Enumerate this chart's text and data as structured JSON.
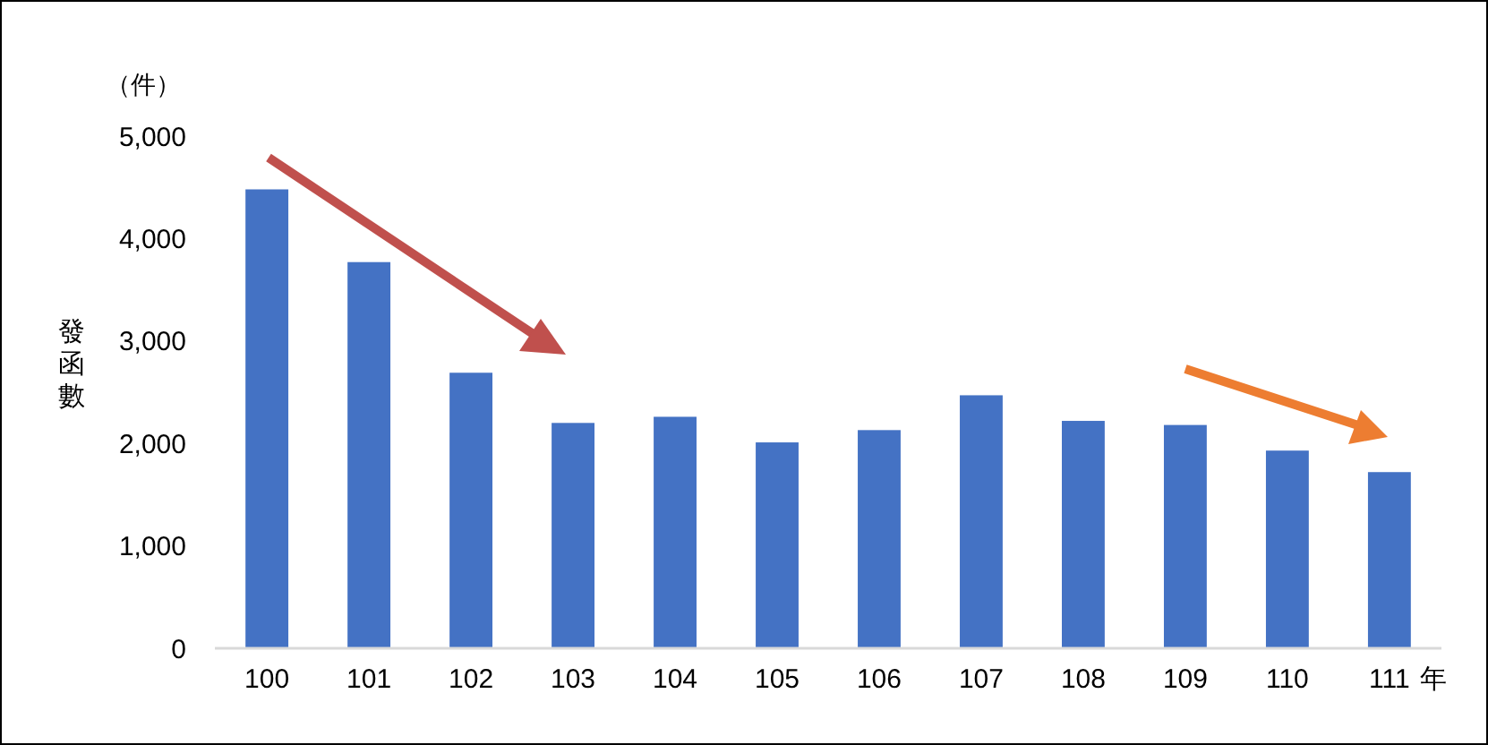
{
  "chart_data": {
    "type": "bar",
    "ylabel": "發函數",
    "xlabel": "年",
    "annotations": [
      "（件）"
    ],
    "categories": [
      "100",
      "101",
      "102",
      "103",
      "104",
      "105",
      "106",
      "107",
      "108",
      "109",
      "110",
      "111"
    ],
    "values": [
      4480,
      3770,
      2690,
      2200,
      2260,
      2010,
      2130,
      2470,
      2220,
      2180,
      1930,
      1720
    ],
    "color": "#4472c4",
    "ylim": [
      0,
      5000
    ],
    "yticks": [
      {
        "value": 0,
        "label": "0"
      },
      {
        "value": 1000,
        "label": "1,000"
      },
      {
        "value": 2000,
        "label": "2,000"
      },
      {
        "value": 3000,
        "label": "3,000"
      },
      {
        "value": 4000,
        "label": "4,000"
      },
      {
        "value": 5000,
        "label": "5,000"
      }
    ],
    "grid": false
  }
}
